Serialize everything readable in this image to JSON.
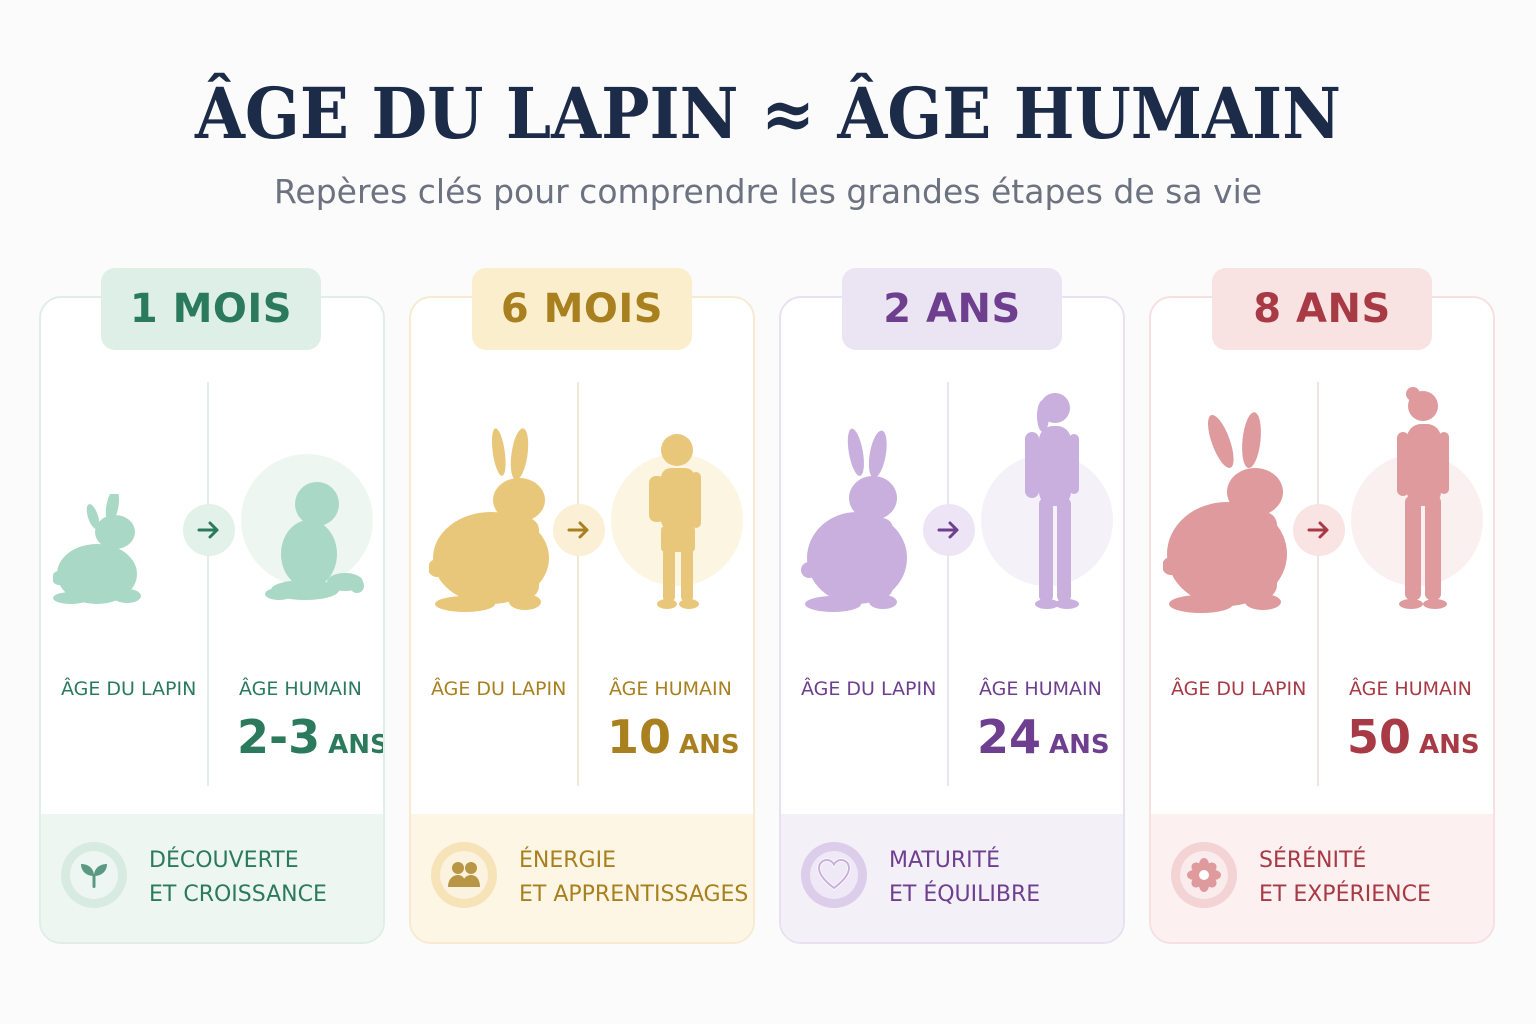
{
  "header": {
    "title": "ÂGE DU LAPIN ≈ ÂGE HUMAIN",
    "subtitle": "Repères clés pour comprendre les grandes étapes de sa vie"
  },
  "labels": {
    "rabbit_age": "ÂGE DU LAPIN",
    "human_age": "ÂGE HUMAIN"
  },
  "stages": [
    {
      "rabbit_age": "1 MOIS",
      "human_value": "2-3",
      "human_unit": "ANS",
      "trait_line1": "DÉCOUVERTE",
      "trait_line2": "ET CROISSANCE",
      "icon": "sprout-icon",
      "human_figure": "baby-icon",
      "color": "#2c7a5e"
    },
    {
      "rabbit_age": "6 MOIS",
      "human_value": "10",
      "human_unit": "ANS",
      "trait_line1": "ÉNERGIE",
      "trait_line2": "ET APPRENTISSAGES",
      "icon": "people-icon",
      "human_figure": "child-icon",
      "color": "#a9801f"
    },
    {
      "rabbit_age": "2 ANS",
      "human_value": "24",
      "human_unit": "ANS",
      "trait_line1": "MATURITÉ",
      "trait_line2": "ET ÉQUILIBRE",
      "icon": "heart-icon",
      "human_figure": "young-woman-icon",
      "color": "#6e3f8f"
    },
    {
      "rabbit_age": "8 ANS",
      "human_value": "50",
      "human_unit": "ANS",
      "trait_line1": "SÉRÉNITÉ",
      "trait_line2": "ET EXPÉRIENCE",
      "icon": "flower-icon",
      "human_figure": "adult-woman-icon",
      "color": "#a83a45"
    }
  ]
}
